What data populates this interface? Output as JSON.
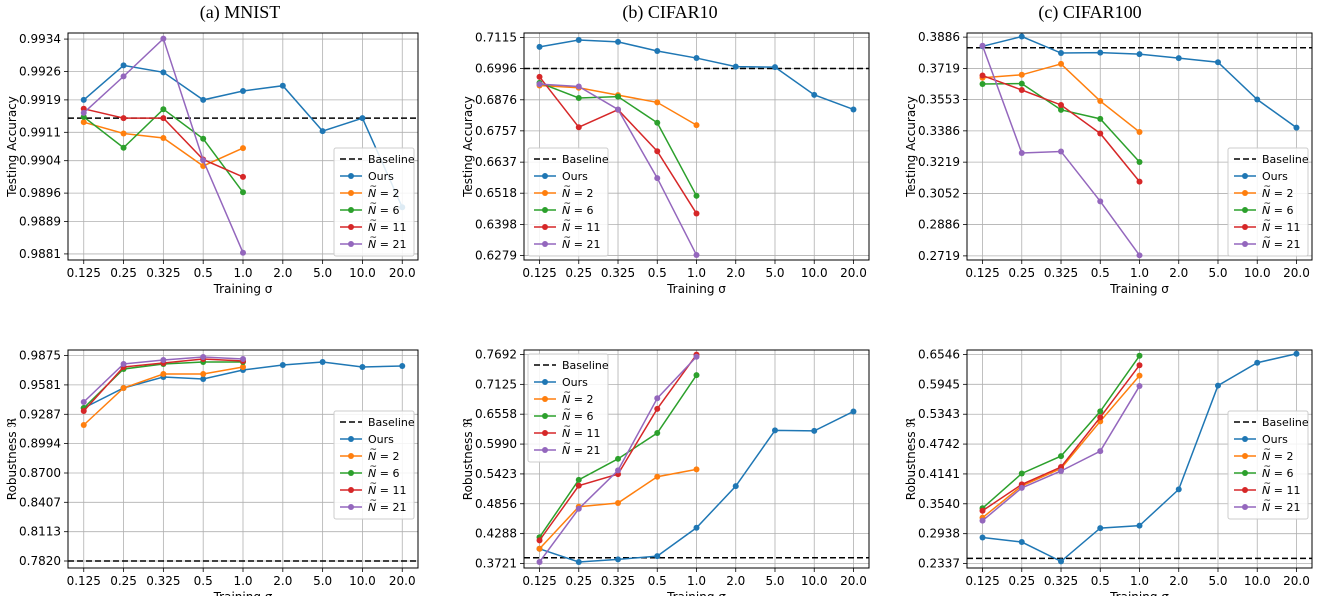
{
  "column_titles": [
    "(a) MNIST",
    "(b) CIFAR10",
    "(c) CIFAR100"
  ],
  "colors": {
    "Baseline": "#000000",
    "Ours": "#1f77b4",
    "N2": "#ff7f0e",
    "N6": "#2ca02c",
    "N11": "#d62728",
    "N21": "#9467bd"
  },
  "chart_data": [
    {
      "id": "mnist-accuracy",
      "type": "line",
      "xlabel": "Training σ",
      "ylabel": "Testing Accuracy",
      "categories": [
        "0.125",
        "0.25",
        "0.325",
        "0.5",
        "1.0",
        "2.0",
        "5.0",
        "10.0",
        "20.0"
      ],
      "yticks": [
        "0.9881",
        "0.9889",
        "0.9896",
        "0.9904",
        "0.9911",
        "0.9919",
        "0.9926",
        "0.9934"
      ],
      "ylim": [
        0.98795,
        0.99355
      ],
      "baseline": 0.99145,
      "legend_position": "lower-right",
      "series": [
        {
          "name": "Ours",
          "key": "Ours",
          "values": [
            0.9919,
            0.99275,
            0.99258,
            0.9919,
            0.99212,
            0.99225,
            0.99113,
            0.99145,
            0.98925
          ]
        },
        {
          "name": "N = 2",
          "key": "N2",
          "values": [
            0.99135,
            0.99107,
            0.99096,
            0.99027,
            0.99071,
            null,
            null,
            null,
            null
          ]
        },
        {
          "name": "N = 6",
          "key": "N6",
          "values": [
            0.99148,
            0.99072,
            0.99167,
            0.99094,
            0.98962,
            null,
            null,
            null,
            null
          ]
        },
        {
          "name": "N = 11",
          "key": "N11",
          "values": [
            0.99168,
            0.99145,
            0.99145,
            0.99043,
            0.99,
            null,
            null,
            null,
            null
          ]
        },
        {
          "name": "N = 21",
          "key": "N21",
          "values": [
            0.99158,
            0.99248,
            0.99341,
            0.99041,
            0.98813,
            null,
            null,
            null,
            null
          ]
        }
      ]
    },
    {
      "id": "cifar10-accuracy",
      "type": "line",
      "xlabel": "Training σ",
      "ylabel": "Testing Accuracy",
      "categories": [
        "0.125",
        "0.25",
        "0.325",
        "0.5",
        "1.0",
        "2.0",
        "5.0",
        "10.0",
        "20.0"
      ],
      "yticks": [
        "0.6279",
        "0.6398",
        "0.6518",
        "0.6637",
        "0.6757",
        "0.6876",
        "0.6996",
        "0.7115"
      ],
      "ylim": [
        0.6262,
        0.7132
      ],
      "baseline": 0.6996,
      "legend_position": "lower-left",
      "series": [
        {
          "name": "Ours",
          "key": "Ours",
          "values": [
            0.7079,
            0.7105,
            0.7098,
            0.7063,
            0.7036,
            0.7003,
            0.7001,
            0.6895,
            0.6839
          ]
        },
        {
          "name": "N = 2",
          "key": "N2",
          "values": [
            0.6931,
            0.6922,
            0.6894,
            0.6866,
            0.6779,
            null,
            null,
            null,
            null
          ]
        },
        {
          "name": "N = 6",
          "key": "N6",
          "values": [
            0.6941,
            0.6883,
            0.6888,
            0.6788,
            0.6508,
            null,
            null,
            null,
            null
          ]
        },
        {
          "name": "N = 11",
          "key": "N11",
          "values": [
            0.6964,
            0.6771,
            0.6838,
            0.6679,
            0.644,
            null,
            null,
            null,
            null
          ]
        },
        {
          "name": "N = 21",
          "key": "N21",
          "values": [
            0.6936,
            0.6927,
            0.6839,
            0.6576,
            0.6281,
            null,
            null,
            null,
            null
          ]
        }
      ]
    },
    {
      "id": "cifar100-accuracy",
      "type": "line",
      "xlabel": "Training σ",
      "ylabel": "Testing Accuracy",
      "categories": [
        "0.125",
        "0.25",
        "0.325",
        "0.5",
        "1.0",
        "2.0",
        "5.0",
        "10.0",
        "20.0"
      ],
      "yticks": [
        "0.2719",
        "0.2886",
        "0.3052",
        "0.3219",
        "0.3386",
        "0.3553",
        "0.3719",
        "0.3886"
      ],
      "ylim": [
        0.2697,
        0.3908
      ],
      "baseline": 0.3829,
      "legend_position": "lower-right",
      "series": [
        {
          "name": "Ours",
          "key": "Ours",
          "values": [
            0.3837,
            0.3889,
            0.3801,
            0.3803,
            0.3795,
            0.3774,
            0.3752,
            0.3553,
            0.3403
          ]
        },
        {
          "name": "N = 2",
          "key": "N2",
          "values": [
            0.3669,
            0.3685,
            0.3743,
            0.3545,
            0.338,
            null,
            null,
            null,
            null
          ]
        },
        {
          "name": "N = 6",
          "key": "N6",
          "values": [
            0.3636,
            0.3638,
            0.3498,
            0.345,
            0.322,
            null,
            null,
            null,
            null
          ]
        },
        {
          "name": "N = 11",
          "key": "N11",
          "values": [
            0.3681,
            0.3604,
            0.3524,
            0.3372,
            0.3115,
            null,
            null,
            null,
            null
          ]
        },
        {
          "name": "N = 21",
          "key": "N21",
          "values": [
            0.384,
            0.3268,
            0.3276,
            0.301,
            0.2722,
            null,
            null,
            null,
            null
          ]
        }
      ]
    },
    {
      "id": "mnist-robustness",
      "type": "line",
      "xlabel": "Training σ",
      "ylabel": "Robustness ℜ",
      "categories": [
        "0.125",
        "0.25",
        "0.325",
        "0.5",
        "1.0",
        "2.0",
        "5.0",
        "10.0",
        "20.0"
      ],
      "yticks": [
        "0.7820",
        "0.8113",
        "0.8407",
        "0.8700",
        "0.8994",
        "0.9287",
        "0.9581",
        "0.9875"
      ],
      "ylim": [
        0.775,
        0.993
      ],
      "baseline": 0.782,
      "legend_position": "center-right",
      "series": [
        {
          "name": "Ours",
          "key": "Ours",
          "values": [
            0.935,
            0.955,
            0.966,
            0.964,
            0.973,
            0.978,
            0.981,
            0.976,
            0.977
          ]
        },
        {
          "name": "N = 2",
          "key": "N2",
          "values": [
            0.918,
            0.955,
            0.969,
            0.969,
            0.976,
            null,
            null,
            null,
            null
          ]
        },
        {
          "name": "N = 6",
          "key": "N6",
          "values": [
            0.935,
            0.974,
            0.979,
            0.981,
            0.981,
            null,
            null,
            null,
            null
          ]
        },
        {
          "name": "N = 11",
          "key": "N11",
          "values": [
            0.932,
            0.976,
            0.98,
            0.984,
            0.982,
            null,
            null,
            null,
            null
          ]
        },
        {
          "name": "N = 21",
          "key": "N21",
          "values": [
            0.941,
            0.979,
            0.983,
            0.986,
            0.984,
            null,
            null,
            null,
            null
          ]
        }
      ]
    },
    {
      "id": "cifar10-robustness",
      "type": "line",
      "xlabel": "Training σ",
      "ylabel": "Robustness ℜ",
      "categories": [
        "0.125",
        "0.25",
        "0.325",
        "0.5",
        "1.0",
        "2.0",
        "5.0",
        "10.0",
        "20.0"
      ],
      "yticks": [
        "0.3721",
        "0.4288",
        "0.4856",
        "0.5423",
        "0.5990",
        "0.6558",
        "0.7125",
        "0.7692"
      ],
      "ylim": [
        0.3635,
        0.7778
      ],
      "baseline": 0.383,
      "legend_position": "upper-left",
      "series": [
        {
          "name": "Ours",
          "key": "Ours",
          "values": [
            0.4,
            0.375,
            0.38,
            0.386,
            0.44,
            0.519,
            0.625,
            0.624,
            0.661
          ]
        },
        {
          "name": "N = 2",
          "key": "N2",
          "values": [
            0.4,
            0.48,
            0.487,
            0.537,
            0.551,
            null,
            null,
            null,
            null
          ]
        },
        {
          "name": "N = 6",
          "key": "N6",
          "values": [
            0.422,
            0.531,
            0.571,
            0.62,
            0.73,
            null,
            null,
            null,
            null
          ]
        },
        {
          "name": "N = 11",
          "key": "N11",
          "values": [
            0.416,
            0.52,
            0.542,
            0.666,
            0.769,
            null,
            null,
            null,
            null
          ]
        },
        {
          "name": "N = 21",
          "key": "N21",
          "values": [
            0.375,
            0.476,
            0.549,
            0.686,
            0.765,
            null,
            null,
            null,
            null
          ]
        }
      ]
    },
    {
      "id": "cifar100-robustness",
      "type": "line",
      "xlabel": "Training σ",
      "ylabel": "Robustness ℜ",
      "categories": [
        "0.125",
        "0.25",
        "0.325",
        "0.5",
        "1.0",
        "2.0",
        "5.0",
        "10.0",
        "20.0"
      ],
      "yticks": [
        "0.2337",
        "0.2938",
        "0.3540",
        "0.4141",
        "0.4742",
        "0.5343",
        "0.5945",
        "0.6546"
      ],
      "ylim": [
        0.2247,
        0.6636
      ],
      "baseline": 0.244,
      "legend_position": "center-right",
      "series": [
        {
          "name": "Ours",
          "key": "Ours",
          "values": [
            0.286,
            0.277,
            0.238,
            0.305,
            0.31,
            0.383,
            0.592,
            0.638,
            0.656
          ]
        },
        {
          "name": "N = 2",
          "key": "N2",
          "values": [
            0.326,
            0.39,
            0.425,
            0.52,
            0.612,
            null,
            null,
            null,
            null
          ]
        },
        {
          "name": "N = 6",
          "key": "N6",
          "values": [
            0.345,
            0.415,
            0.45,
            0.54,
            0.652,
            null,
            null,
            null,
            null
          ]
        },
        {
          "name": "N = 11",
          "key": "N11",
          "values": [
            0.34,
            0.393,
            0.428,
            0.528,
            0.633,
            null,
            null,
            null,
            null
          ]
        },
        {
          "name": "N = 21",
          "key": "N21",
          "values": [
            0.32,
            0.386,
            0.42,
            0.46,
            0.591,
            null,
            null,
            null,
            null
          ]
        }
      ]
    }
  ],
  "legend": {
    "baseline_label": "Baseline",
    "ours_label": "Ours",
    "n_symbol": "N",
    "tilde": "~",
    "n_values": [
      "= 2",
      "= 6",
      "= 11",
      "= 21"
    ]
  }
}
